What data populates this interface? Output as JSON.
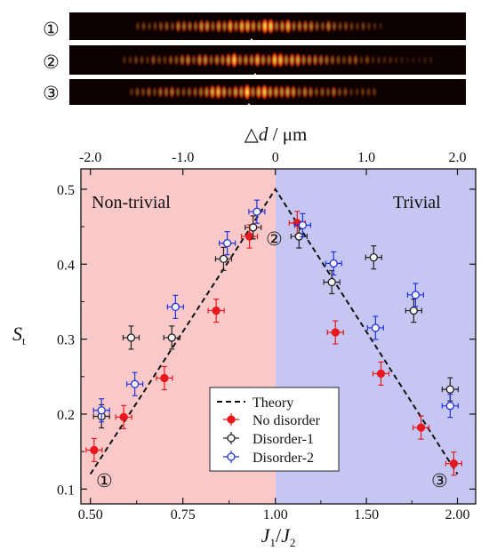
{
  "chart_data": {
    "type": "scatter",
    "xlabel_main": "J",
    "xlabel_sub1": "1",
    "xlabel_slash": "/",
    "xlabel_main2": "J",
    "xlabel_sub2": "2",
    "ylabel_main": "S",
    "ylabel_sub": "t",
    "top_axis_label_symbol": "△",
    "top_axis_label_var": "d",
    "top_axis_label_unit": " / μm",
    "x_ticks": [
      "0.50",
      "0.75",
      "1.00",
      "1.50",
      "2.00"
    ],
    "y_ticks": [
      "0.1",
      "0.2",
      "0.3",
      "0.4",
      "0.5"
    ],
    "top_ticks": [
      "-2.0",
      "-1.0",
      "0",
      "1.0",
      "2.0"
    ],
    "ylim": [
      0.1,
      0.52
    ],
    "regions": {
      "left_label": "Non-trivial",
      "right_label": "Trivial",
      "left_color": "#f9c9c9",
      "right_color": "#c6c6f2"
    },
    "markers": [
      "①",
      "②",
      "③"
    ],
    "legend": {
      "position": "lower-center",
      "entries": [
        "Theory",
        "No disorder",
        "Disorder-1",
        "Disorder-2"
      ]
    },
    "theory": {
      "name": "Theory",
      "x": [
        0.5,
        1.0,
        2.0
      ],
      "y": [
        0.12,
        0.5,
        0.12
      ]
    },
    "series": [
      {
        "name": "No disorder",
        "color": "#e8181f",
        "filled": true,
        "x": [
          0.51,
          0.59,
          0.7,
          0.84,
          0.93,
          1.12,
          1.33,
          1.58,
          1.8,
          1.98
        ],
        "y": [
          0.152,
          0.196,
          0.248,
          0.338,
          0.437,
          0.455,
          0.309,
          0.254,
          0.182,
          0.134
        ]
      },
      {
        "name": "Disorder-1",
        "color": "#222222",
        "filled": false,
        "x": [
          0.53,
          0.61,
          0.72,
          0.86,
          0.94,
          1.13,
          1.31,
          1.54,
          1.76,
          1.96
        ],
        "y": [
          0.197,
          0.302,
          0.302,
          0.407,
          0.449,
          0.437,
          0.376,
          0.409,
          0.338,
          0.233
        ]
      },
      {
        "name": "Disorder-2",
        "color": "#2233dd",
        "filled": false,
        "x": [
          0.53,
          0.62,
          0.73,
          0.87,
          0.95,
          1.15,
          1.32,
          1.55,
          1.77,
          1.96
        ],
        "y": [
          0.205,
          0.24,
          0.343,
          0.428,
          0.47,
          0.452,
          0.401,
          0.315,
          0.359,
          0.211
        ]
      }
    ]
  }
}
